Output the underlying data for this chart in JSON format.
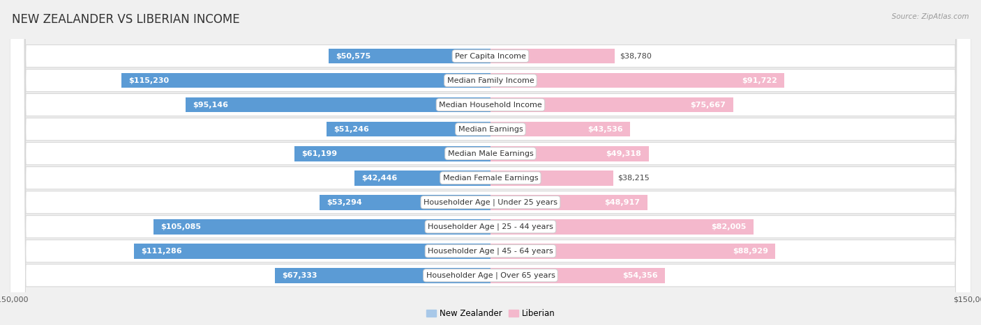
{
  "title": "NEW ZEALANDER VS LIBERIAN INCOME",
  "source": "Source: ZipAtlas.com",
  "categories": [
    "Per Capita Income",
    "Median Family Income",
    "Median Household Income",
    "Median Earnings",
    "Median Male Earnings",
    "Median Female Earnings",
    "Householder Age | Under 25 years",
    "Householder Age | 25 - 44 years",
    "Householder Age | 45 - 64 years",
    "Householder Age | Over 65 years"
  ],
  "nz_values": [
    50575,
    115230,
    95146,
    51246,
    61199,
    42446,
    53294,
    105085,
    111286,
    67333
  ],
  "lib_values": [
    38780,
    91722,
    75667,
    43536,
    49318,
    38215,
    48917,
    82005,
    88929,
    54356
  ],
  "nz_labels": [
    "$50,575",
    "$115,230",
    "$95,146",
    "$51,246",
    "$61,199",
    "$42,446",
    "$53,294",
    "$105,085",
    "$111,286",
    "$67,333"
  ],
  "lib_labels": [
    "$38,780",
    "$91,722",
    "$75,667",
    "$43,536",
    "$49,318",
    "$38,215",
    "$48,917",
    "$82,005",
    "$88,929",
    "$54,356"
  ],
  "max_val": 150000,
  "nz_color_light": "#a8c8e8",
  "nz_color_dark": "#5b9bd5",
  "lib_color_light": "#f4b8cc",
  "lib_color_dark": "#e8608a",
  "bg_color": "#f0f0f0",
  "row_bg": "#ffffff",
  "bar_height": 0.62,
  "title_fontsize": 12,
  "label_fontsize": 8,
  "axis_fontsize": 8,
  "legend_fontsize": 8.5,
  "source_fontsize": 7.5,
  "inside_threshold": 0.27
}
